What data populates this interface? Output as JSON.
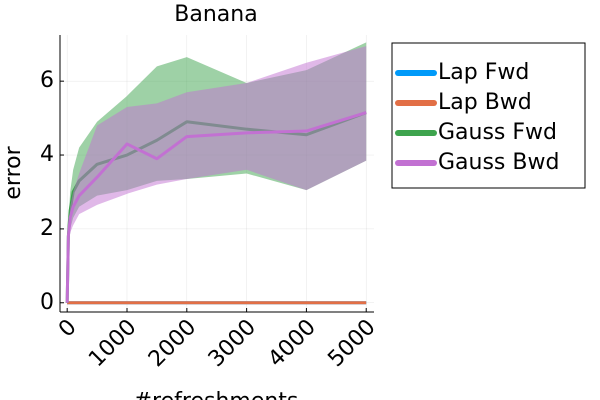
{
  "chart_data": {
    "type": "line",
    "title": "Banana",
    "xlabel": "#refreshments",
    "ylabel": "error",
    "x": [
      0,
      20,
      50,
      100,
      200,
      500,
      1000,
      1500,
      2000,
      3000,
      4000,
      5000
    ],
    "series": [
      {
        "name": "Lap Fwd",
        "color": "#009af9",
        "values": [
          0,
          0,
          0,
          0,
          0,
          0,
          0,
          0,
          0,
          0,
          0,
          0
        ]
      },
      {
        "name": "Lap Bwd",
        "color": "#e26f46",
        "values": [
          0,
          0,
          0,
          0,
          0,
          0,
          0,
          0,
          0,
          0,
          0,
          0
        ]
      },
      {
        "name": "Gauss Fwd",
        "color": "#3ea44e",
        "values": [
          0,
          1.8,
          2.5,
          3.0,
          3.3,
          3.75,
          4.0,
          4.4,
          4.9,
          4.7,
          4.55,
          5.15
        ],
        "upper": [
          0,
          2.2,
          3.0,
          3.6,
          4.2,
          4.9,
          5.6,
          6.4,
          6.65,
          5.95,
          6.3,
          7.05
        ],
        "lower": [
          0,
          1.5,
          2.0,
          2.3,
          2.6,
          2.9,
          3.05,
          3.3,
          3.35,
          3.5,
          3.05,
          3.85
        ]
      },
      {
        "name": "Gauss Bwd",
        "color": "#c271d2",
        "values": [
          0,
          1.8,
          2.3,
          2.6,
          2.9,
          3.4,
          4.3,
          3.9,
          4.5,
          4.6,
          4.65,
          5.15
        ],
        "upper": [
          0,
          2.0,
          2.6,
          3.0,
          3.5,
          4.8,
          5.3,
          5.4,
          5.7,
          5.95,
          6.5,
          6.95
        ],
        "lower": [
          0,
          1.5,
          1.9,
          2.1,
          2.4,
          2.65,
          2.95,
          3.2,
          3.35,
          3.6,
          3.05,
          3.85
        ]
      }
    ],
    "xlim": [
      -120,
      5130
    ],
    "xticks": [
      0,
      1000,
      2000,
      3000,
      4000,
      5000
    ],
    "ylim": [
      -0.25,
      7.25
    ],
    "yticks": [
      0,
      2,
      4,
      6
    ],
    "grid": true,
    "legend": "outside-right"
  }
}
